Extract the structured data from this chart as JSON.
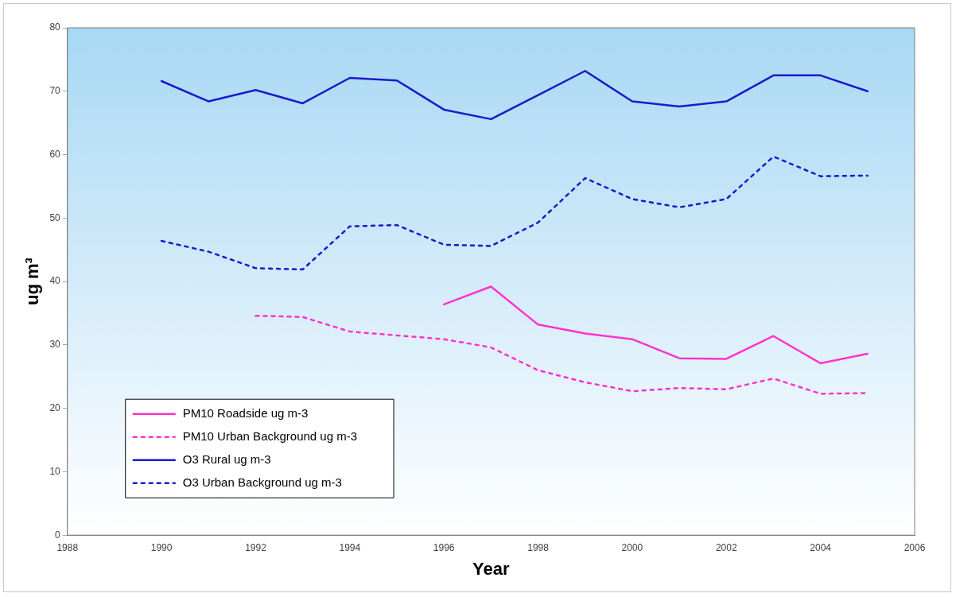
{
  "chart_data": {
    "type": "line",
    "xlabel": "Year",
    "ylabel": "ug m³",
    "x": [
      1990,
      1991,
      1992,
      1993,
      1994,
      1995,
      1996,
      1997,
      1998,
      1999,
      2000,
      2001,
      2002,
      2003,
      2004,
      2005
    ],
    "series": [
      {
        "name": "PM10 Roadside ug m-3",
        "color": "#ff33cc",
        "line_style": "solid",
        "values": [
          null,
          null,
          null,
          null,
          null,
          null,
          36.4,
          39.2,
          33.2,
          31.8,
          30.9,
          27.9,
          27.8,
          31.4,
          27.1,
          28.6
        ]
      },
      {
        "name": "PM10 Urban Background ug m-3",
        "color": "#ff33cc",
        "line_style": "dotted",
        "values": [
          null,
          null,
          34.6,
          34.4,
          32.1,
          31.5,
          30.9,
          29.6,
          26.0,
          24.1,
          22.7,
          23.2,
          23.0,
          24.7,
          22.3,
          22.4
        ]
      },
      {
        "name": "O3 Rural ug m-3",
        "color": "#1a1acc",
        "line_style": "solid",
        "values": [
          71.6,
          68.4,
          70.2,
          68.1,
          72.1,
          71.7,
          67.1,
          65.6,
          69.4,
          73.2,
          68.4,
          67.6,
          68.4,
          72.5,
          72.5,
          70.0
        ]
      },
      {
        "name": "O3 Urban Background ug m-3",
        "color": "#1a1acc",
        "line_style": "dotted",
        "values": [
          46.4,
          44.7,
          42.1,
          41.9,
          48.7,
          48.9,
          45.8,
          45.6,
          49.3,
          56.3,
          53.0,
          51.7,
          53.0,
          59.7,
          56.6,
          56.7
        ]
      }
    ],
    "xlim": [
      1988,
      2006
    ],
    "xticks": [
      1988,
      1990,
      1992,
      1994,
      1996,
      1998,
      2000,
      2002,
      2004,
      2006
    ],
    "ylim": [
      0,
      80
    ],
    "yticks": [
      0,
      10,
      20,
      30,
      40,
      50,
      60,
      70,
      80
    ],
    "grid": false,
    "legend": "bottom left",
    "marker": "none"
  }
}
